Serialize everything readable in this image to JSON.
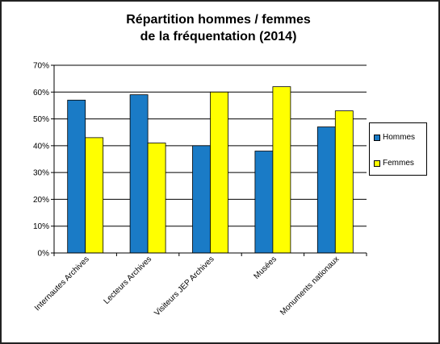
{
  "chart_data": {
    "type": "bar",
    "title_line1": "Répartition hommes / femmes",
    "title_line2": "de la fréquentation (2014)",
    "categories": [
      "Internautes Archives",
      "Lecteurs Archives",
      "Visiteurs JEP Archives",
      "Musées",
      "Monuments nationaux"
    ],
    "series": [
      {
        "name": "Hommes",
        "color": "#1a7bc6",
        "values": [
          57,
          59,
          40,
          38,
          47
        ]
      },
      {
        "name": "Femmes",
        "color": "#ffff00",
        "values": [
          43,
          41,
          60,
          62,
          53
        ]
      }
    ],
    "ylim": [
      0,
      70
    ],
    "yticks": [
      "0%",
      "10%",
      "20%",
      "30%",
      "40%",
      "50%",
      "60%",
      "70%"
    ],
    "grid": true,
    "legend_position": "right"
  }
}
